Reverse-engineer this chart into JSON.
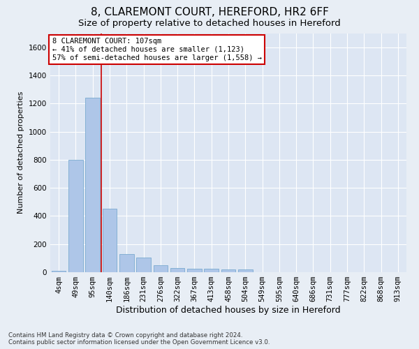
{
  "title": "8, CLAREMONT COURT, HEREFORD, HR2 6FF",
  "subtitle": "Size of property relative to detached houses in Hereford",
  "xlabel": "Distribution of detached houses by size in Hereford",
  "ylabel": "Number of detached properties",
  "footer_line1": "Contains HM Land Registry data © Crown copyright and database right 2024.",
  "footer_line2": "Contains public sector information licensed under the Open Government Licence v3.0.",
  "bins": [
    "4sqm",
    "49sqm",
    "95sqm",
    "140sqm",
    "186sqm",
    "231sqm",
    "276sqm",
    "322sqm",
    "367sqm",
    "413sqm",
    "458sqm",
    "504sqm",
    "549sqm",
    "595sqm",
    "640sqm",
    "686sqm",
    "731sqm",
    "777sqm",
    "822sqm",
    "868sqm",
    "913sqm"
  ],
  "values": [
    10,
    800,
    1240,
    450,
    130,
    105,
    50,
    30,
    25,
    25,
    20,
    20,
    0,
    0,
    0,
    0,
    0,
    0,
    0,
    0,
    0
  ],
  "bar_color": "#aec6e8",
  "bar_edge_color": "#7aaad0",
  "vline_x": 2.5,
  "vline_color": "#cc0000",
  "annotation_line1": "8 CLAREMONT COURT: 107sqm",
  "annotation_line2": "← 41% of detached houses are smaller (1,123)",
  "annotation_line3": "57% of semi-detached houses are larger (1,558) →",
  "annotation_box_color": "#ffffff",
  "annotation_box_edge_color": "#cc0000",
  "ylim": [
    0,
    1700
  ],
  "yticks": [
    0,
    200,
    400,
    600,
    800,
    1000,
    1200,
    1400,
    1600
  ],
  "bg_color": "#e8eef5",
  "plot_bg_color": "#dde6f3",
  "grid_color": "#ffffff",
  "title_fontsize": 11,
  "subtitle_fontsize": 9.5,
  "xlabel_fontsize": 9,
  "ylabel_fontsize": 8,
  "tick_fontsize": 7.5,
  "annotation_fontsize": 7.5
}
